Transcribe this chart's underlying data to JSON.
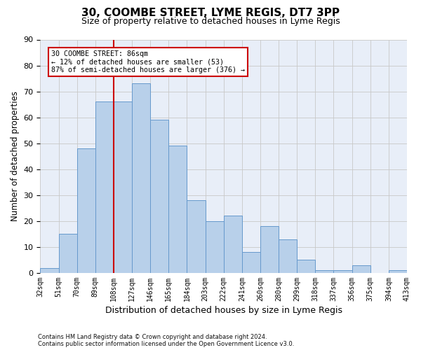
{
  "title": "30, COOMBE STREET, LYME REGIS, DT7 3PP",
  "subtitle": "Size of property relative to detached houses in Lyme Regis",
  "xlabel": "Distribution of detached houses by size in Lyme Regis",
  "ylabel": "Number of detached properties",
  "bar_values": [
    2,
    15,
    48,
    66,
    66,
    73,
    59,
    49,
    28,
    20,
    22,
    8,
    18,
    13,
    5,
    1,
    1,
    3,
    0,
    1
  ],
  "bar_labels": [
    "32sqm",
    "51sqm",
    "70sqm",
    "89sqm",
    "108sqm",
    "127sqm",
    "146sqm",
    "165sqm",
    "184sqm",
    "203sqm",
    "222sqm",
    "241sqm",
    "260sqm",
    "280sqm",
    "299sqm",
    "318sqm",
    "337sqm",
    "356sqm",
    "375sqm",
    "394sqm",
    "413sqm"
  ],
  "bar_color": "#b8d0ea",
  "bar_edge_color": "#6699cc",
  "grid_color": "#c8c8c8",
  "background_color": "#e8eef8",
  "vline_color": "#cc0000",
  "vline_pos": 3.5,
  "annotation_line1": "30 COOMBE STREET: 86sqm",
  "annotation_line2": "← 12% of detached houses are smaller (53)",
  "annotation_line3": "87% of semi-detached houses are larger (376) →",
  "annotation_box_color": "white",
  "annotation_box_edge": "#cc0000",
  "ylim_max": 90,
  "yticks": [
    0,
    10,
    20,
    30,
    40,
    50,
    60,
    70,
    80,
    90
  ],
  "footer_line1": "Contains HM Land Registry data © Crown copyright and database right 2024.",
  "footer_line2": "Contains public sector information licensed under the Open Government Licence v3.0."
}
